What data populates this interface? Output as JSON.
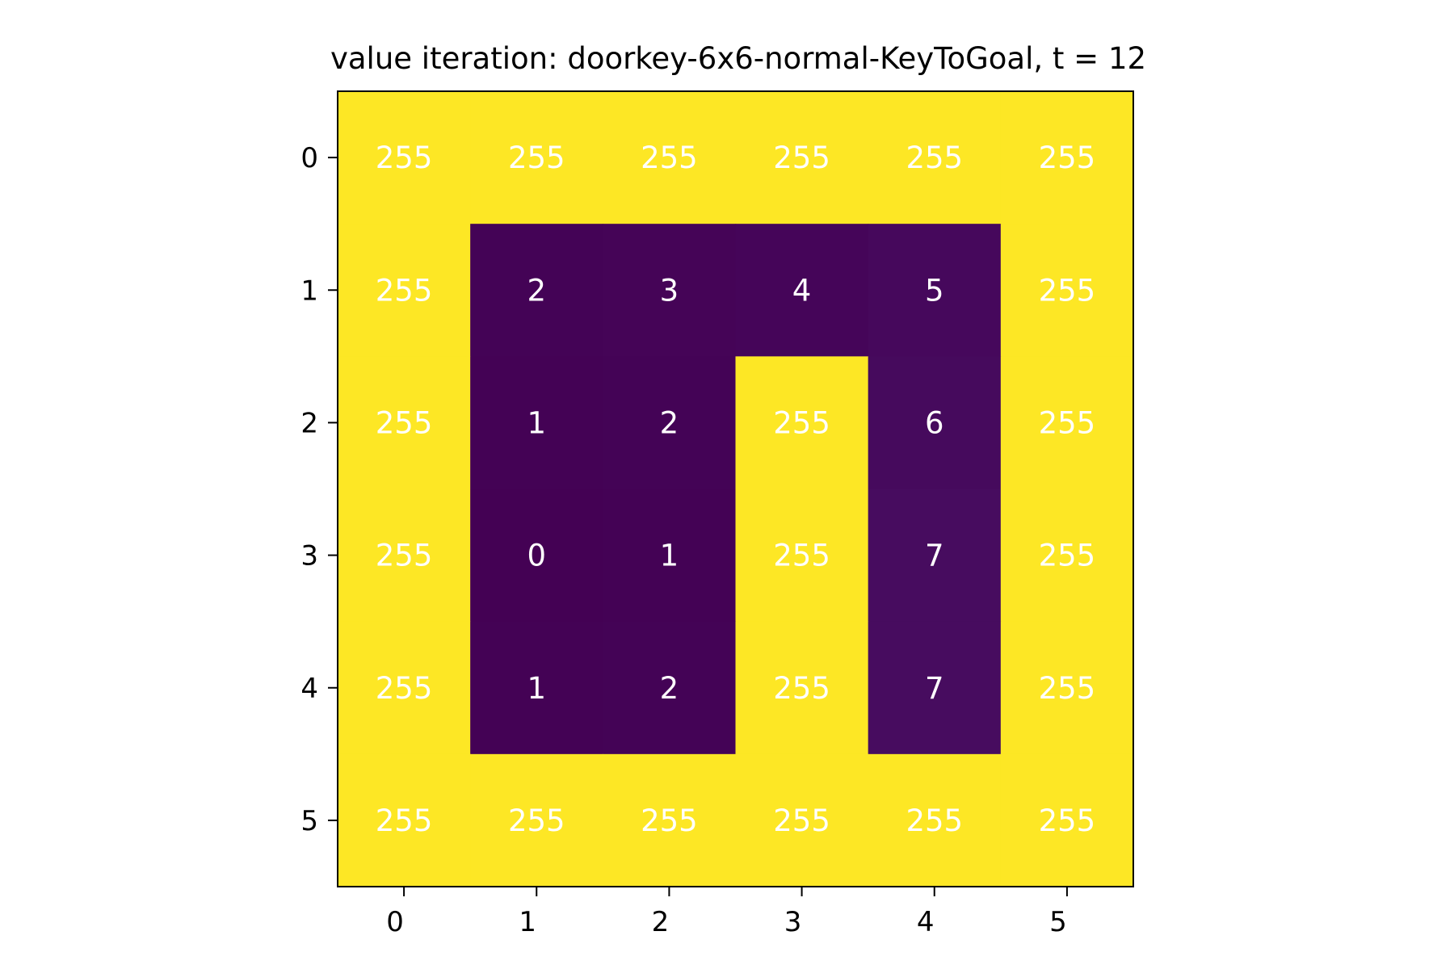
{
  "chart_data": {
    "type": "heatmap",
    "title": "value iteration: doorkey-6x6-normal-KeyToGoal, t = 12",
    "xlabel": "",
    "ylabel": "",
    "x_ticks": [
      "0",
      "1",
      "2",
      "3",
      "4",
      "5"
    ],
    "y_ticks": [
      "0",
      "1",
      "2",
      "3",
      "4",
      "5"
    ],
    "grid": false,
    "colormap": "viridis",
    "value_range": [
      0,
      255
    ],
    "values": [
      [
        255,
        255,
        255,
        255,
        255,
        255
      ],
      [
        255,
        2,
        3,
        4,
        5,
        255
      ],
      [
        255,
        1,
        2,
        255,
        6,
        255
      ],
      [
        255,
        0,
        1,
        255,
        7,
        255
      ],
      [
        255,
        1,
        2,
        255,
        7,
        255
      ],
      [
        255,
        255,
        255,
        255,
        255,
        255
      ]
    ],
    "cell_label_color": "#ffffff",
    "wall_color": "#fde725",
    "low_color": "#440154"
  }
}
